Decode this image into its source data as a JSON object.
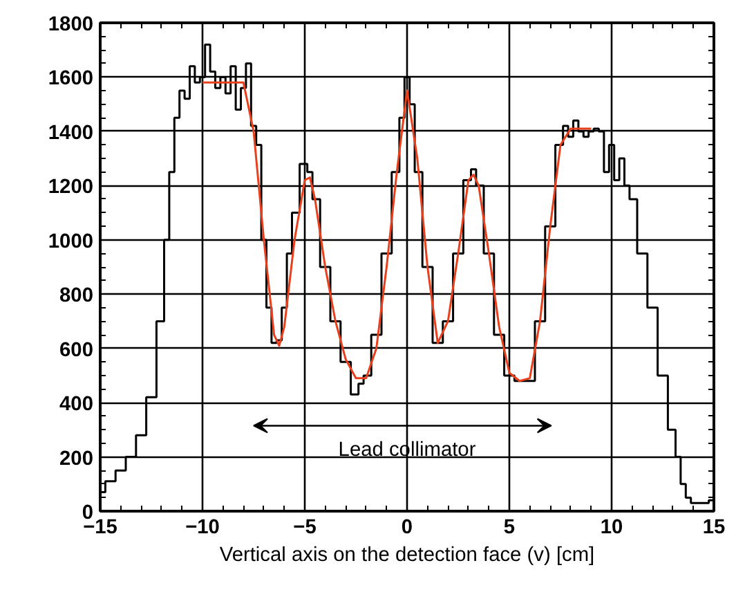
{
  "chart_data": {
    "type": "line",
    "xlabel": "Vertical axis on the detection face (v) [cm]",
    "xlim": [
      -15,
      15
    ],
    "xticks": [
      -15,
      -10,
      -5,
      0,
      5,
      10,
      15
    ],
    "ylim": [
      0,
      1800
    ],
    "yticks": [
      0,
      200,
      400,
      600,
      800,
      1000,
      1200,
      1400,
      1600,
      1800
    ],
    "grid": true,
    "marker": "none",
    "annotations": [
      "Lead collimator"
    ],
    "series": [
      {
        "type": "step",
        "color": "#000000",
        "x": [
          -15,
          -14.5,
          -14,
          -13.5,
          -13,
          -12.5,
          -12,
          -11.75,
          -11.5,
          -11.25,
          -11,
          -10.75,
          -10.5,
          -10.25,
          -10,
          -9.75,
          -9.5,
          -9.25,
          -9,
          -8.75,
          -8.5,
          -8.25,
          -8,
          -7.75,
          -7.5,
          -7.25,
          -7,
          -6.75,
          -6.5,
          -6.25,
          -6,
          -5.75,
          -5.5,
          -5,
          -4.75,
          -4.5,
          -4,
          -3.5,
          -3,
          -2.5,
          -2.25,
          -2,
          -1.5,
          -1,
          -0.5,
          -0.25,
          0,
          0.25,
          0.5,
          1,
          1.5,
          2,
          2.5,
          3,
          3.25,
          3.5,
          4,
          4.5,
          5,
          5.5,
          6,
          6.5,
          7,
          7.5,
          7.75,
          8,
          8.25,
          8.5,
          8.75,
          9,
          9.25,
          9.5,
          9.75,
          10,
          10.25,
          10.5,
          10.75,
          11,
          11.5,
          12,
          12.5,
          13,
          13.25,
          13.5,
          13.75,
          14,
          14.5,
          15
        ],
        "values": [
          70,
          110,
          150,
          200,
          280,
          420,
          700,
          1000,
          1250,
          1450,
          1550,
          1520,
          1640,
          1580,
          1600,
          1720,
          1620,
          1560,
          1600,
          1540,
          1640,
          1480,
          1560,
          1650,
          1420,
          1350,
          1000,
          750,
          620,
          630,
          750,
          950,
          1100,
          1280,
          1250,
          1150,
          900,
          700,
          550,
          430,
          470,
          500,
          650,
          950,
          1250,
          1450,
          1600,
          1500,
          1250,
          900,
          620,
          700,
          950,
          1220,
          1260,
          1200,
          950,
          650,
          500,
          480,
          480,
          700,
          1050,
          1350,
          1420,
          1380,
          1440,
          1400,
          1380,
          1400,
          1410,
          1400,
          1250,
          1350,
          1220,
          1300,
          1200,
          1150,
          950,
          750,
          500,
          300,
          200,
          100,
          50,
          30,
          30,
          40
        ]
      },
      {
        "color": "#e8401c",
        "x": [
          -10,
          -8,
          -7.5,
          -7,
          -6.5,
          -6.25,
          -6,
          -5.5,
          -5,
          -4.75,
          -4.5,
          -4,
          -3.5,
          -3,
          -2.5,
          -2,
          -1.5,
          -1,
          -0.5,
          0,
          0.5,
          1,
          1.5,
          2,
          2.5,
          3,
          3.25,
          3.5,
          4,
          4.5,
          5,
          5.5,
          6,
          6.5,
          7,
          7.5,
          8,
          9
        ],
        "values": [
          1580,
          1580,
          1400,
          1000,
          650,
          610,
          680,
          1000,
          1220,
          1230,
          1150,
          900,
          700,
          560,
          490,
          490,
          600,
          900,
          1250,
          1550,
          1300,
          900,
          620,
          700,
          950,
          1220,
          1240,
          1200,
          950,
          680,
          510,
          480,
          490,
          700,
          1050,
          1350,
          1410,
          1410
        ]
      }
    ]
  }
}
